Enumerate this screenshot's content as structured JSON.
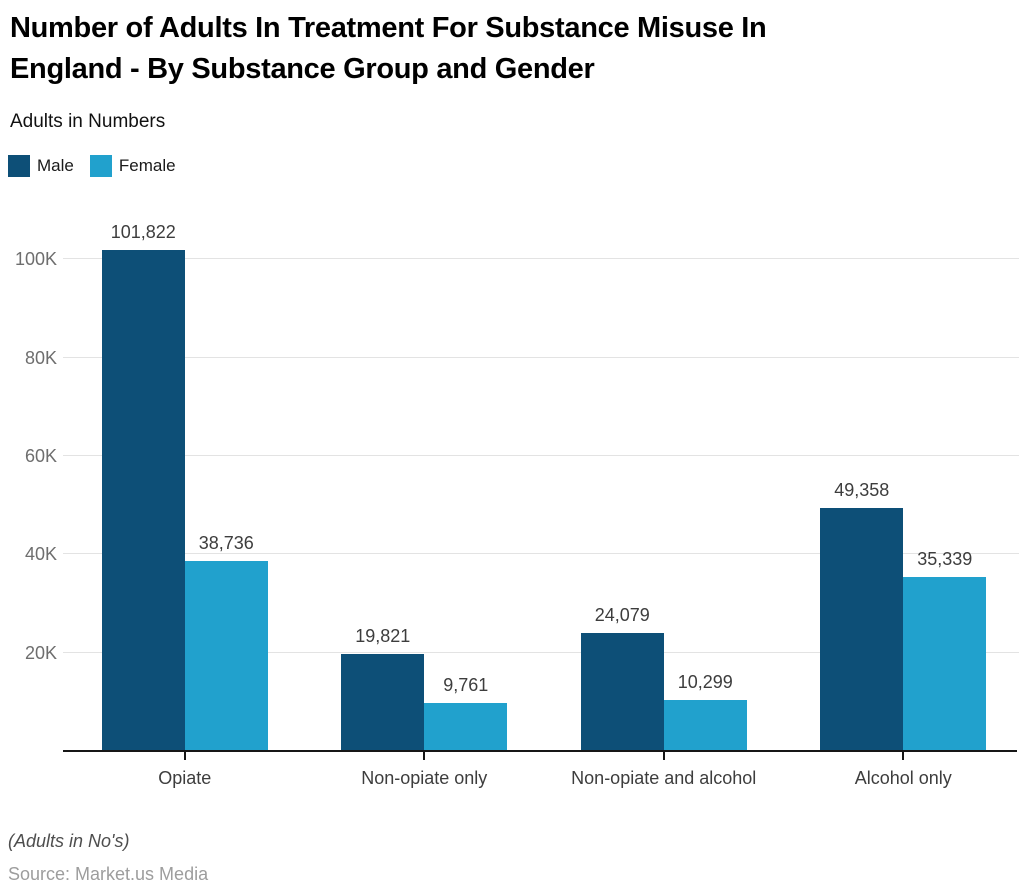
{
  "header": {
    "title": "Number of Adults In Treatment For Substance Misuse In\nEngland - By Substance Group and Gender",
    "subtitle": "Adults in Numbers"
  },
  "chart_data": {
    "type": "bar",
    "title": "Number of Adults In Treatment For Substance Misuse In England - By Substance Group and Gender",
    "ylabel": "Adults in Numbers",
    "xlabel": "",
    "categories": [
      "Opiate",
      "Non-opiate only",
      "Non-opiate and alcohol",
      "Alcohol only"
    ],
    "series": [
      {
        "name": "Male",
        "color": "#0d4f77",
        "values": [
          101822,
          19821,
          24079,
          49358
        ],
        "labels": [
          "101,822",
          "19,821",
          "24,079",
          "49,358"
        ]
      },
      {
        "name": "Female",
        "color": "#21a1cd",
        "values": [
          38736,
          9761,
          10299,
          35339
        ],
        "labels": [
          "38,736",
          "9,761",
          "10,299",
          "35,339"
        ]
      }
    ],
    "ylim": [
      0,
      110000
    ],
    "yticks": [
      {
        "value": 20000,
        "label": "20K"
      },
      {
        "value": 40000,
        "label": "40K"
      },
      {
        "value": 60000,
        "label": "60K"
      },
      {
        "value": 80000,
        "label": "80K"
      },
      {
        "value": 100000,
        "label": "100K"
      }
    ],
    "grid": true,
    "legend_position": "top-left"
  },
  "footer": {
    "note": "(Adults in No's)",
    "source": "Source: Market.us Media"
  }
}
